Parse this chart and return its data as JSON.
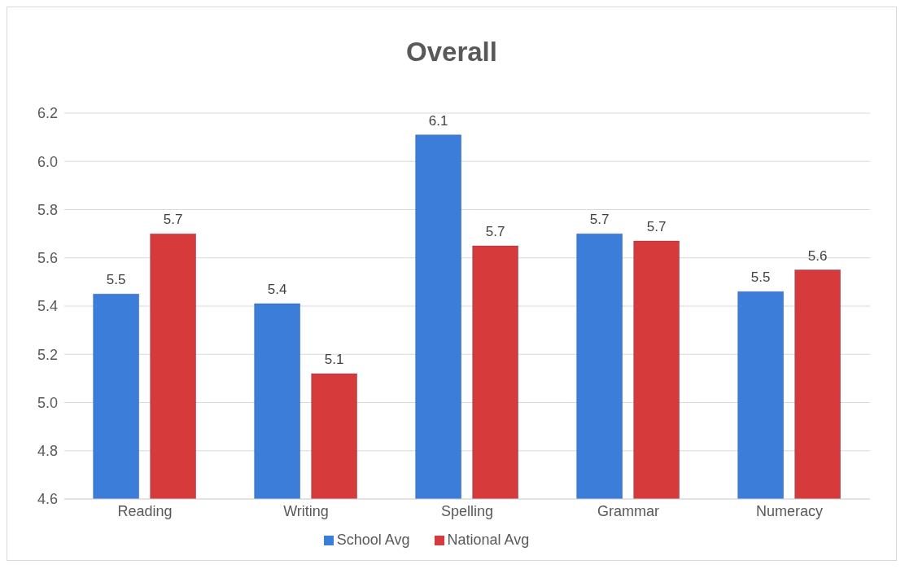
{
  "chart_data": {
    "type": "bar",
    "title": "Overall",
    "categories": [
      "Reading",
      "Writing",
      "Spelling",
      "Grammar",
      "Numeracy"
    ],
    "series": [
      {
        "name": "School Avg",
        "color": "#3b7dd8",
        "values": [
          5.45,
          5.41,
          6.11,
          5.7,
          5.46
        ],
        "value_labels": [
          "5.5",
          "5.4",
          "6.1",
          "5.7",
          "5.5"
        ]
      },
      {
        "name": "National Avg",
        "color": "#d63a3a",
        "values": [
          5.7,
          5.12,
          5.65,
          5.67,
          5.55
        ],
        "value_labels": [
          "5.7",
          "5.1",
          "5.7",
          "5.7",
          "5.6"
        ]
      }
    ],
    "ylim": [
      4.6,
      6.2
    ],
    "yticks": [
      {
        "value": 4.6,
        "label": "4.6"
      },
      {
        "value": 4.8,
        "label": "4.8"
      },
      {
        "value": 5,
        "label": "5.0"
      },
      {
        "value": 5.2,
        "label": "5.2"
      },
      {
        "value": 5.4,
        "label": "5.4"
      },
      {
        "value": 5.6,
        "label": "5.6"
      },
      {
        "value": 5.8,
        "label": "5.8"
      },
      {
        "value": 6,
        "label": "6.0"
      },
      {
        "value": 6.2,
        "label": "6.2"
      }
    ],
    "grid": "y",
    "legend": "bottom"
  }
}
